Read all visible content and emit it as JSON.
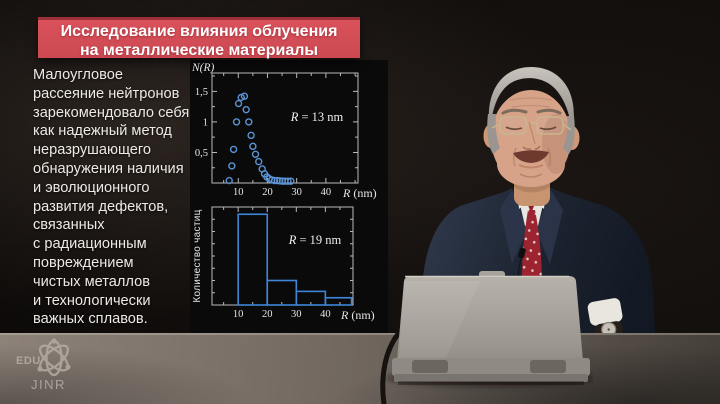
{
  "banner": {
    "line1": "Исследование влияния облучения",
    "line2": "на металлические материалы",
    "bg_color": "#d9515b",
    "text_color": "#ffffff"
  },
  "paragraph": {
    "text": "Малоугловое\nрассеяние нейтронов\nзарекомендовало себя\nкак надежный метод\nнеразрушающего\nобнаружения наличия\nи эволюционного\nразвития дефектов,\nсвязанных\nс радиационным\nповреждением\nчистых металлов\nи технологически\nважных сплавов."
  },
  "logo": {
    "line1": "EDU",
    "line2": "JINR"
  },
  "chart_data": [
    {
      "type": "scatter",
      "title": "",
      "ylabel": "N(R)",
      "xlabel": "R (nm)",
      "annotation": "R = 13 nm",
      "marker": "open-circle",
      "color": "#5b93d2",
      "axis_color": "#b9b9b9",
      "label_color": "#e6e6e6",
      "x_ticks": [
        10,
        20,
        30,
        40
      ],
      "y_ticks": [
        {
          "v": 0.5,
          "label": "0,5"
        },
        {
          "v": 1,
          "label": "1"
        },
        {
          "v": 1.5,
          "label": "1,5"
        }
      ],
      "x_minor_step": 5,
      "y_minor_step": 0.25,
      "xlim": [
        1,
        51
      ],
      "ylim": [
        0,
        1.8
      ],
      "grid": false,
      "points": [
        [
          6.9,
          0.04
        ],
        [
          7.8,
          0.28
        ],
        [
          8.4,
          0.55
        ],
        [
          9.4,
          1.0
        ],
        [
          10.1,
          1.3
        ],
        [
          11.0,
          1.4
        ],
        [
          12.1,
          1.42
        ],
        [
          12.7,
          1.2
        ],
        [
          13.6,
          1.0
        ],
        [
          14.4,
          0.78
        ],
        [
          15.0,
          0.6
        ],
        [
          15.9,
          0.47
        ],
        [
          17.0,
          0.35
        ],
        [
          18.2,
          0.23
        ],
        [
          19.0,
          0.15
        ],
        [
          19.8,
          0.1
        ],
        [
          20.6,
          0.07
        ],
        [
          21.5,
          0.05
        ],
        [
          22.4,
          0.04
        ],
        [
          23.3,
          0.04
        ],
        [
          24.2,
          0.035
        ],
        [
          25.1,
          0.03
        ],
        [
          26.0,
          0.03
        ],
        [
          27.0,
          0.03
        ],
        [
          28.0,
          0.03
        ]
      ]
    },
    {
      "type": "histogram",
      "title": "",
      "ylabel": "Количество частиц",
      "xlabel": "R (nm)",
      "annotation": "R = 19 nm",
      "color": "#3f86d8",
      "axis_color": "#b9b9b9",
      "label_color": "#e6e6e6",
      "x_ticks": [
        10,
        20,
        30,
        40
      ],
      "x_minor_step": 5,
      "y_minor_count": 8,
      "xlim": [
        1,
        49.5
      ],
      "ylim": [
        0,
        1.08
      ],
      "grid": false,
      "bins": [
        {
          "from": 10,
          "to": 20,
          "value": 1.0
        },
        {
          "from": 20,
          "to": 30,
          "value": 0.27
        },
        {
          "from": 30,
          "to": 40,
          "value": 0.15
        },
        {
          "from": 40,
          "to": 49,
          "value": 0.08
        }
      ]
    }
  ]
}
